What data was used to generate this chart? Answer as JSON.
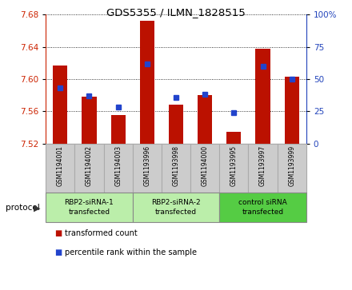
{
  "title": "GDS5355 / ILMN_1828515",
  "samples": [
    "GSM1194001",
    "GSM1194002",
    "GSM1194003",
    "GSM1193996",
    "GSM1193998",
    "GSM1194000",
    "GSM1193995",
    "GSM1193997",
    "GSM1193999"
  ],
  "bar_values": [
    7.617,
    7.578,
    7.555,
    7.672,
    7.568,
    7.58,
    7.535,
    7.638,
    7.603
  ],
  "percentile_values": [
    43,
    37,
    28,
    62,
    36,
    38,
    24,
    60,
    50
  ],
  "ylim_left": [
    7.52,
    7.68
  ],
  "ylim_right": [
    0,
    100
  ],
  "yticks_left": [
    7.52,
    7.56,
    7.6,
    7.64,
    7.68
  ],
  "yticks_right": [
    0,
    25,
    50,
    75,
    100
  ],
  "bar_color": "#bb1100",
  "dot_color": "#2244cc",
  "groups": [
    {
      "label": "RBP2-siRNA-1\ntransfected",
      "start": 0,
      "end": 3
    },
    {
      "label": "RBP2-siRNA-2\ntransfected",
      "start": 3,
      "end": 6
    },
    {
      "label": "control siRNA\ntransfected",
      "start": 6,
      "end": 9
    }
  ],
  "group_colors": [
    "#bbeeaa",
    "#bbeeaa",
    "#55cc44"
  ],
  "protocol_label": "protocol",
  "legend_items": [
    {
      "label": "transformed count",
      "color": "#bb1100"
    },
    {
      "label": "percentile rank within the sample",
      "color": "#2244cc"
    }
  ],
  "bg_color": "#ffffff",
  "sample_bg": "#cccccc",
  "left_tick_color": "#cc2200",
  "right_tick_color": "#2244bb"
}
